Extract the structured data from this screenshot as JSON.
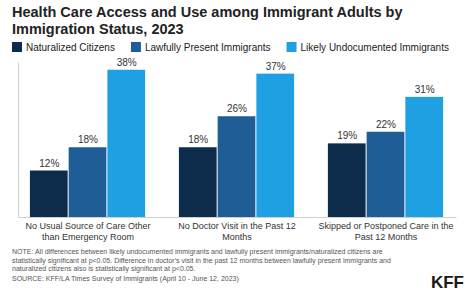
{
  "chart_data": {
    "type": "bar",
    "title": "Health Care Access and Use among Immigrant Adults by Immigration Status, 2023",
    "categories": [
      "No Usual Source of Care Other than Emergency Room",
      "No Doctor Visit in the Past 12 Months",
      "Skipped or Postponed Care in the Past 12 Months"
    ],
    "series": [
      {
        "name": "Naturalized Citizens",
        "color": "#0d2b4b",
        "values": [
          12,
          18,
          19
        ],
        "value_labels": [
          "12%",
          "18%",
          "19%"
        ]
      },
      {
        "name": "Lawfully Present Immigrants",
        "color": "#1f5d96",
        "values": [
          18,
          26,
          22
        ],
        "value_labels": [
          "18%",
          "26%",
          "22%"
        ]
      },
      {
        "name": "Likely Undocumented Immigrants",
        "color": "#1ea0e2",
        "values": [
          38,
          37,
          31
        ],
        "value_labels": [
          "38%",
          "37%",
          "31%"
        ]
      }
    ],
    "ylim": [
      0,
      40
    ],
    "yticks": [],
    "data_labels": true,
    "tick_labels": "x",
    "grid": false,
    "legend": "top-left",
    "note": "NOTE: All differences between likely undocumented immigrants and lawfully present immigrants/naturalized citizens are statistically significant at p<0.05. Difference in doctor's visit in the past 12 months between lawfully present immigrants and naturalized citizens also is statistically significant at p<0.05.",
    "source": "SOURCE: KFF/LA Times Survey of Immigrants (April 10 - June 12, 2023)",
    "logo": "KFF"
  }
}
